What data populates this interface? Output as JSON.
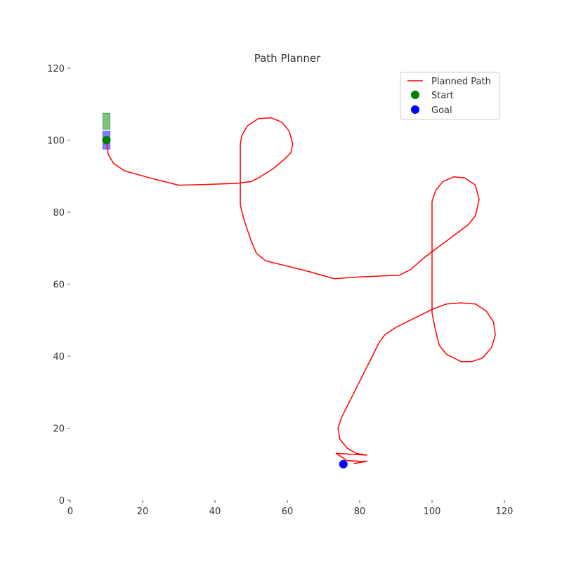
{
  "chart_data": {
    "type": "line",
    "title": "Path Planner",
    "xlabel": "",
    "ylabel": "",
    "xlim": [
      0,
      120
    ],
    "ylim": [
      0,
      120
    ],
    "x_ticks": [
      0,
      20,
      40,
      60,
      80,
      100,
      120
    ],
    "y_ticks": [
      0,
      20,
      40,
      60,
      80,
      100,
      120
    ],
    "grid": false,
    "legend_position": "top-right",
    "series": [
      {
        "name": "Planned Path",
        "kind": "line",
        "color": "#ff0000",
        "points": [
          [
            10,
            100
          ],
          [
            10.5,
            96
          ],
          [
            12,
            93.5
          ],
          [
            15,
            91.5
          ],
          [
            22,
            89.5
          ],
          [
            30,
            87.5
          ],
          [
            38,
            87.7
          ],
          [
            46,
            88
          ],
          [
            50,
            88.5
          ],
          [
            52,
            89.5
          ],
          [
            56,
            92
          ],
          [
            59,
            94.5
          ],
          [
            61,
            96.5
          ],
          [
            61.5,
            99
          ],
          [
            60.5,
            102.5
          ],
          [
            58.5,
            105
          ],
          [
            55.5,
            106.2
          ],
          [
            52,
            106
          ],
          [
            49,
            104
          ],
          [
            47.5,
            101.5
          ],
          [
            47,
            99
          ],
          [
            47,
            94
          ],
          [
            47,
            88
          ],
          [
            47,
            82
          ],
          [
            48,
            78
          ],
          [
            50,
            72
          ],
          [
            51.5,
            68.5
          ],
          [
            54,
            66.5
          ],
          [
            58,
            65.5
          ],
          [
            66,
            63.5
          ],
          [
            73,
            61.5
          ],
          [
            80,
            62
          ],
          [
            91,
            62.5
          ],
          [
            94,
            64
          ],
          [
            98,
            67.5
          ],
          [
            104,
            72
          ],
          [
            110,
            76.5
          ],
          [
            112,
            79
          ],
          [
            113,
            83.5
          ],
          [
            112,
            87.5
          ],
          [
            109,
            89.5
          ],
          [
            106,
            89.8
          ],
          [
            103,
            88.5
          ],
          [
            101,
            86
          ],
          [
            100,
            83
          ],
          [
            100,
            75
          ],
          [
            100,
            65
          ],
          [
            100,
            52
          ],
          [
            101,
            47
          ],
          [
            102,
            43
          ],
          [
            104,
            40.5
          ],
          [
            108,
            38.5
          ],
          [
            111,
            38.5
          ],
          [
            114,
            39.5
          ],
          [
            116.5,
            42.5
          ],
          [
            117.5,
            46
          ],
          [
            117,
            49.5
          ],
          [
            115,
            52.5
          ],
          [
            112,
            54.5
          ],
          [
            108,
            54.8
          ],
          [
            104,
            54.5
          ],
          [
            100,
            53
          ],
          [
            94,
            50
          ],
          [
            90,
            48
          ],
          [
            87,
            46
          ],
          [
            85.5,
            44
          ],
          [
            82,
            37
          ],
          [
            78,
            29
          ],
          [
            75,
            23
          ],
          [
            74,
            20
          ],
          [
            74.5,
            17
          ],
          [
            76.5,
            14.5
          ],
          [
            79,
            13
          ],
          [
            82,
            12.5
          ],
          [
            73.5,
            13
          ],
          [
            76.5,
            11
          ],
          [
            80,
            10.8
          ],
          [
            82,
            10.8
          ],
          [
            78.5,
            10.2
          ]
        ]
      },
      {
        "name": "Start",
        "kind": "marker",
        "color": "#008000",
        "points": [
          [
            10,
            100
          ]
        ]
      },
      {
        "name": "Goal",
        "kind": "marker",
        "color": "#0000ff",
        "points": [
          [
            75.5,
            10
          ]
        ]
      }
    ],
    "rectangles": [
      {
        "name": "start-footprint",
        "color": "#008000",
        "opacity": 0.5,
        "x": [
          9,
          11
        ],
        "y": [
          103,
          107.5
        ]
      },
      {
        "name": "current-footprint",
        "color": "#0000ff",
        "opacity": 0.5,
        "x": [
          9,
          11
        ],
        "y": [
          97.5,
          102.5
        ]
      }
    ]
  }
}
